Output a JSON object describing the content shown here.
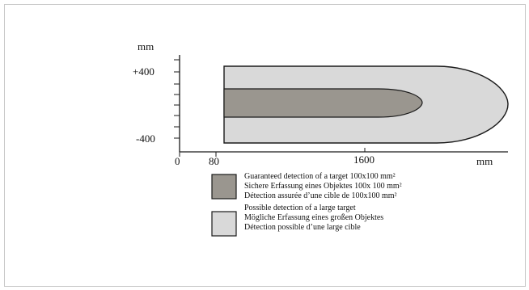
{
  "axes": {
    "y_unit": "mm",
    "y_ticks": [
      "+400",
      "-400"
    ],
    "x_ticks": [
      "0",
      "80",
      "1600"
    ],
    "x_unit": "mm"
  },
  "legend": {
    "guaranteed": {
      "color": "#9a968f",
      "lines": [
        "Guaranteed detection of a target 100x100 mm²",
        "Sichere Erfassung eines Objektes 100x 100 mm²",
        "Détection assurée d’une cible de 100x100 mm²"
      ]
    },
    "possible": {
      "color": "#d9d9d9",
      "lines": [
        "Possible detection of a large target",
        "Mögliche Erfassung eines  großen Objektes",
        "Détection possible d’une large cible"
      ]
    }
  }
}
